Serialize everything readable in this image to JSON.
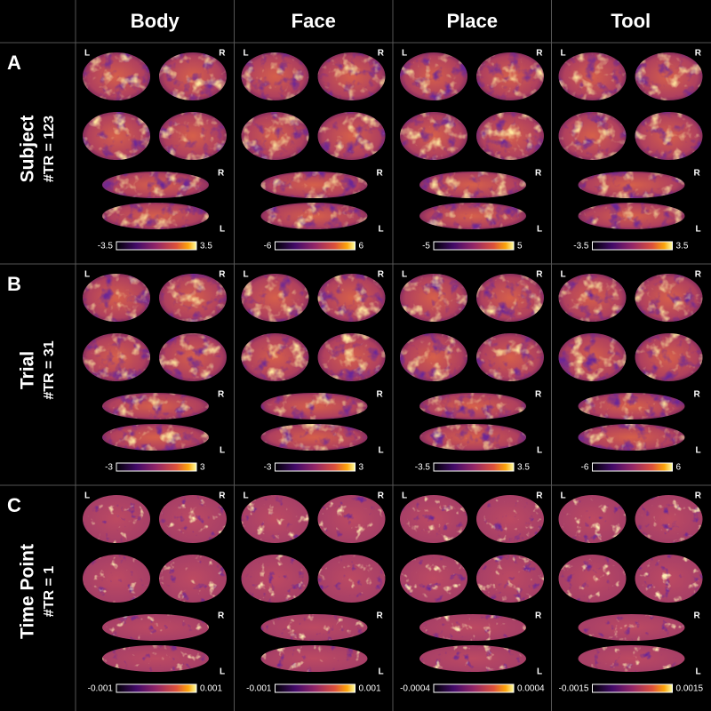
{
  "columns": [
    "Body",
    "Face",
    "Place",
    "Tool"
  ],
  "hemisphere_labels": {
    "left": "L",
    "right": "R"
  },
  "rows": [
    {
      "letter": "A",
      "label": "Subject",
      "sublabel": "#TR = 123",
      "cells": [
        {
          "min": "-3.5",
          "max": "3.5"
        },
        {
          "min": "-6",
          "max": "6"
        },
        {
          "min": "-5",
          "max": "5"
        },
        {
          "min": "-3.5",
          "max": "3.5"
        }
      ]
    },
    {
      "letter": "B",
      "label": "Trial",
      "sublabel": "#TR = 31",
      "cells": [
        {
          "min": "-3",
          "max": "3"
        },
        {
          "min": "-3",
          "max": "3"
        },
        {
          "min": "-3.5",
          "max": "3.5"
        },
        {
          "min": "-6",
          "max": "6"
        }
      ]
    },
    {
      "letter": "C",
      "label": "Time Point",
      "sublabel": "#TR = 1",
      "cells": [
        {
          "min": "-0.001",
          "max": "0.001"
        },
        {
          "min": "-0.001",
          "max": "0.001"
        },
        {
          "min": "-0.0004",
          "max": "0.0004"
        },
        {
          "min": "-0.0015",
          "max": "0.0015"
        }
      ]
    }
  ]
}
